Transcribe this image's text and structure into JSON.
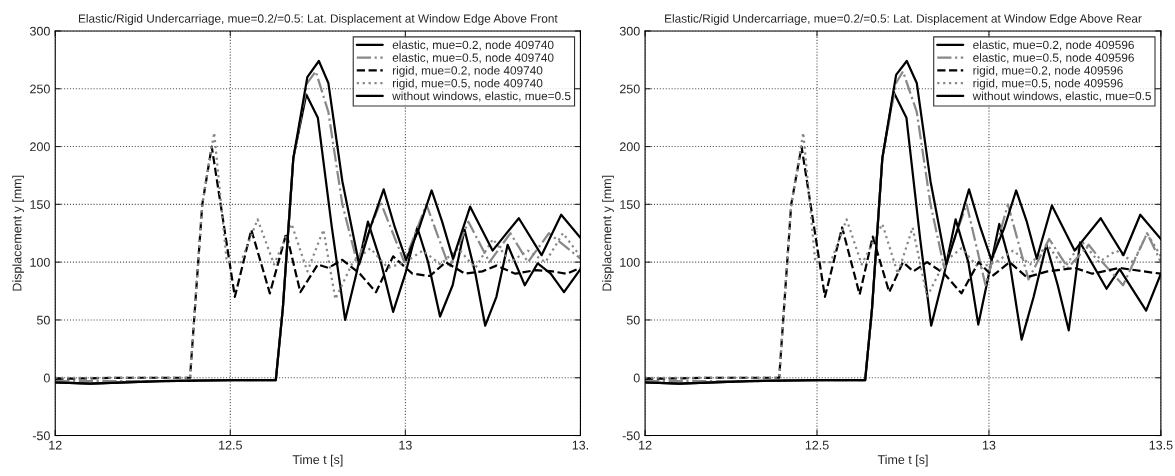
{
  "chart_data": [
    {
      "type": "line",
      "title": "Elastic/Rigid Undercarriage, mue=0.2/=0.5: Lat. Displacement at Window Edge Above Front",
      "xlabel": "Time t [s]",
      "ylabel": "Displacement y [mm]",
      "xlim": [
        12,
        13.5
      ],
      "xticks": [
        12,
        12.5,
        13,
        {
          "value": 13.5,
          "label": "13."
        }
      ],
      "ylim": [
        -50,
        300
      ],
      "yticks": [
        -50,
        0,
        50,
        100,
        150,
        200,
        250,
        300
      ],
      "grid": true,
      "legend": "top right",
      "series": [
        {
          "name": "elastic, mue=0.2, node 409740",
          "color": "#000000",
          "line_style": "solid",
          "x": [
            12,
            12.1,
            12.3,
            12.5,
            12.63,
            12.65,
            12.68,
            12.717,
            12.75,
            12.79,
            12.828,
            12.86,
            12.893,
            12.93,
            12.965,
            13.0,
            13.034,
            13.065,
            13.099,
            13.135,
            13.169,
            13.2,
            13.228,
            13.26,
            13.292,
            13.341,
            13.378,
            13.415,
            13.453,
            13.5
          ],
          "values": [
            -4,
            -5,
            -3,
            -2,
            -2,
            60,
            190,
            245,
            225,
            130,
            50,
            90,
            135,
            100,
            57,
            90,
            130,
            100,
            53,
            80,
            128,
            90,
            45,
            70,
            115,
            80,
            99,
            90,
            74,
            94
          ]
        },
        {
          "name": "elastic, mue=0.5, node 409740",
          "color": "#888888",
          "line_style": "dashdot",
          "x": [
            12,
            12.3,
            12.5,
            12.63,
            12.65,
            12.68,
            12.72,
            12.744,
            12.78,
            12.82,
            12.862,
            12.929,
            12.997,
            13.06,
            13.126,
            13.18,
            13.24,
            13.3,
            13.35,
            13.41,
            13.5
          ],
          "values": [
            -3,
            -3,
            -2,
            -2,
            60,
            190,
            255,
            265,
            230,
            150,
            100,
            152,
            100,
            150,
            95,
            135,
            100,
            125,
            100,
            125,
            103
          ]
        },
        {
          "name": "rigid, mue=0.2, node 409740",
          "color": "#000000",
          "line_style": "dashed",
          "x": [
            12,
            12.2,
            12.385,
            12.42,
            12.447,
            12.513,
            12.56,
            12.613,
            12.66,
            12.7,
            12.75,
            12.78,
            12.82,
            12.87,
            12.916,
            12.965,
            13.02,
            13.07,
            13.115,
            13.17,
            13.22,
            13.26,
            13.314,
            13.37,
            13.42,
            13.46,
            13.5
          ],
          "values": [
            -1,
            0,
            0,
            150,
            200,
            70,
            128,
            73,
            125,
            74,
            98,
            95,
            102,
            90,
            74,
            105,
            90,
            88,
            100,
            90,
            92,
            97,
            90,
            93,
            92,
            90,
            95
          ]
        },
        {
          "name": "rigid, mue=0.5, node 409740",
          "color": "#888888",
          "line_style": "dotted",
          "x": [
            12,
            12.2,
            12.385,
            12.42,
            12.454,
            12.49,
            12.53,
            12.578,
            12.625,
            12.675,
            12.72,
            12.766,
            12.8,
            12.85,
            12.9,
            12.95,
            13.0,
            13.05,
            13.1,
            13.15,
            13.2,
            13.25,
            13.3,
            13.35,
            13.4,
            13.45,
            13.5
          ],
          "values": [
            0,
            0,
            0,
            150,
            212,
            100,
            100,
            137,
            98,
            133,
            92,
            128,
            68,
            100,
            112,
            95,
            100,
            110,
            98,
            112,
            95,
            120,
            100,
            110,
            100,
            125,
            105
          ]
        },
        {
          "name": "without windows, elastic, mue=0.5",
          "color": "#000000",
          "line_style": "solid",
          "x": [
            12,
            12.1,
            12.3,
            12.5,
            12.63,
            12.65,
            12.68,
            12.72,
            12.753,
            12.78,
            12.82,
            12.868,
            12.9,
            12.938,
            12.97,
            13.002,
            13.04,
            13.075,
            13.105,
            13.136,
            13.185,
            13.249,
            13.324,
            13.389,
            13.445,
            13.5
          ],
          "values": [
            -4,
            -5,
            -3,
            -2,
            -2,
            60,
            190,
            260,
            274,
            255,
            170,
            98,
            130,
            163,
            130,
            102,
            130,
            162,
            135,
            103,
            148,
            110,
            138,
            106,
            141,
            121
          ]
        }
      ]
    },
    {
      "type": "line",
      "title": "Elastic/Rigid Undercarriage, mue=0.2/=0.5: Lat. Displacement at Window Edge Above Rear",
      "xlabel": "Time t [s]",
      "ylabel": "Displacement y [mm]",
      "xlim": [
        12,
        13.5
      ],
      "xticks": [
        12,
        12.5,
        13,
        13.5
      ],
      "ylim": [
        -50,
        300
      ],
      "yticks": [
        -50,
        0,
        50,
        100,
        150,
        200,
        250,
        300
      ],
      "grid": true,
      "legend": "top right",
      "series": [
        {
          "name": "elastic, mue=0.2, node 409596",
          "color": "#000000",
          "line_style": "solid",
          "x": [
            12,
            12.1,
            12.3,
            12.5,
            12.64,
            12.66,
            12.69,
            12.723,
            12.76,
            12.8,
            12.832,
            12.87,
            12.903,
            12.94,
            12.969,
            13.0,
            13.03,
            13.06,
            13.095,
            13.13,
            13.167,
            13.2,
            13.232,
            13.265,
            13.342,
            13.38,
            13.457,
            13.5
          ],
          "values": [
            -4,
            -5,
            -3,
            -2,
            -2,
            60,
            190,
            247,
            225,
            120,
            45,
            90,
            137,
            100,
            46,
            90,
            133,
            100,
            33,
            70,
            115,
            80,
            41,
            117,
            77,
            94,
            58,
            90
          ]
        },
        {
          "name": "elastic, mue=0.5, node 409596",
          "color": "#888888",
          "line_style": "dashdot",
          "x": [
            12,
            12.3,
            12.5,
            12.64,
            12.66,
            12.69,
            12.73,
            12.75,
            12.79,
            12.83,
            12.87,
            12.935,
            12.99,
            13.055,
            13.115,
            13.175,
            13.23,
            13.29,
            13.33,
            13.39,
            13.46,
            13.5
          ],
          "values": [
            -3,
            -3,
            -2,
            -2,
            60,
            190,
            255,
            265,
            230,
            150,
            95,
            150,
            80,
            150,
            85,
            120,
            95,
            115,
            100,
            80,
            125,
            100
          ]
        },
        {
          "name": "rigid, mue=0.2, node 409596",
          "color": "#000000",
          "line_style": "dashed",
          "x": [
            12,
            12.2,
            12.39,
            12.425,
            12.455,
            12.523,
            12.573,
            12.624,
            12.662,
            12.71,
            12.75,
            12.78,
            12.82,
            12.87,
            12.92,
            12.97,
            13.01,
            13.06,
            13.11,
            13.17,
            13.25,
            13.3,
            13.38,
            13.45,
            13.5
          ],
          "values": [
            -1,
            0,
            0,
            150,
            200,
            70,
            130,
            72,
            122,
            74,
            100,
            92,
            100,
            90,
            73,
            100,
            88,
            100,
            87,
            92,
            95,
            90,
            95,
            92,
            90
          ]
        },
        {
          "name": "rigid, mue=0.5, node 409596",
          "color": "#888888",
          "line_style": "dotted",
          "x": [
            12,
            12.2,
            12.39,
            12.425,
            12.46,
            12.495,
            12.54,
            12.586,
            12.63,
            12.69,
            12.735,
            12.778,
            12.82,
            12.87,
            12.92,
            12.97,
            13.02,
            13.07,
            13.12,
            13.17,
            13.22,
            13.27,
            13.32,
            13.37,
            13.42,
            13.46,
            13.5
          ],
          "values": [
            0,
            0,
            0,
            150,
            212,
            100,
            100,
            137,
            98,
            133,
            90,
            130,
            70,
            100,
            112,
            95,
            100,
            110,
            98,
            115,
            95,
            118,
            100,
            110,
            100,
            125,
            105
          ]
        },
        {
          "name": "without windows, elastic, mue=0.5",
          "color": "#000000",
          "line_style": "solid",
          "x": [
            12,
            12.1,
            12.3,
            12.5,
            12.64,
            12.66,
            12.69,
            12.73,
            12.761,
            12.79,
            12.83,
            12.876,
            12.91,
            12.942,
            12.975,
            13.007,
            13.045,
            13.079,
            13.11,
            13.139,
            13.183,
            13.249,
            13.325,
            13.391,
            13.44,
            13.5
          ],
          "values": [
            -4,
            -5,
            -3,
            -2,
            -2,
            60,
            190,
            262,
            274,
            255,
            170,
            98,
            130,
            163,
            130,
            102,
            130,
            162,
            135,
            103,
            149,
            110,
            138,
            106,
            141,
            120
          ]
        }
      ]
    }
  ]
}
